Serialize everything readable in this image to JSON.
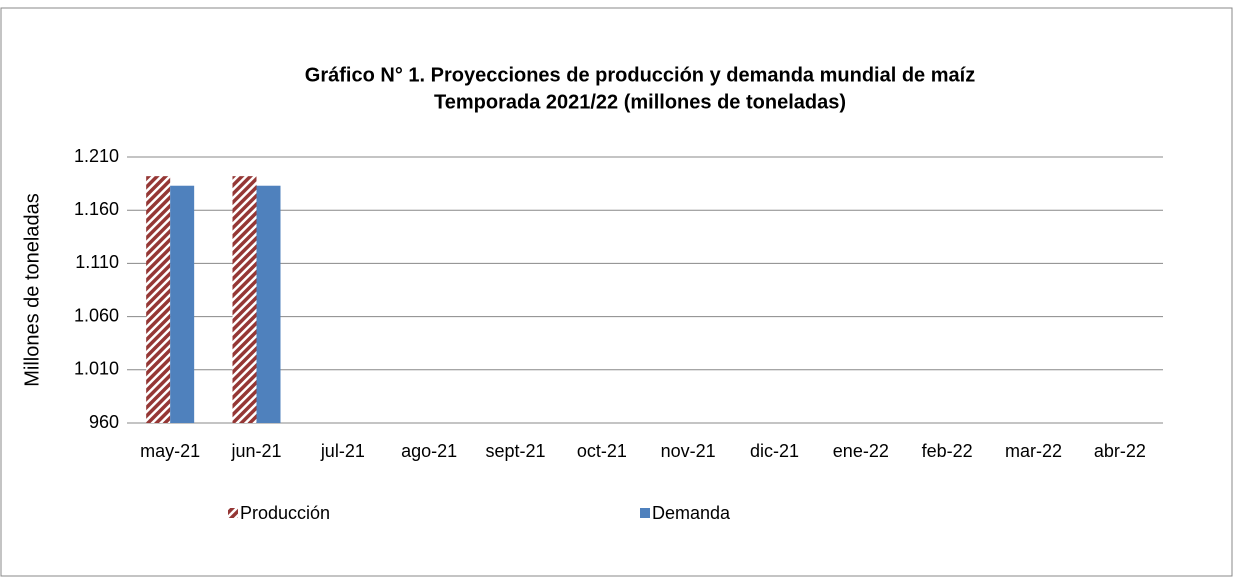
{
  "chart_data": {
    "type": "bar",
    "title": "Gráfico N° 1. Proyecciones de producción y demanda mundial de maíz",
    "subtitle": "Temporada 2021/22 (millones de toneladas)",
    "y_label": "Millones de toneladas",
    "categories": [
      "may-21",
      "jun-21",
      "jul-21",
      "ago-21",
      "sept-21",
      "oct-21",
      "nov-21",
      "dic-21",
      "ene-22",
      "feb-22",
      "mar-22",
      "abr-22"
    ],
    "series": [
      {
        "name": "Producción",
        "color": "#953735",
        "pattern": "hatch",
        "values": [
          1192,
          1192,
          null,
          null,
          null,
          null,
          null,
          null,
          null,
          null,
          null,
          null
        ]
      },
      {
        "name": "Demanda",
        "color": "#4f81bd",
        "values": [
          1183,
          1183,
          null,
          null,
          null,
          null,
          null,
          null,
          null,
          null,
          null,
          null
        ]
      }
    ],
    "ylim": [
      960,
      1210
    ],
    "yticks": [
      960,
      {
        "value": 1010,
        "label": "1.010"
      },
      {
        "value": 1060,
        "label": "1.060"
      },
      {
        "value": 1110,
        "label": "1.110"
      },
      {
        "value": 1160,
        "label": "1.160"
      },
      {
        "value": 1210,
        "label": "1.210"
      }
    ],
    "grid": true,
    "legend": "bottom"
  }
}
